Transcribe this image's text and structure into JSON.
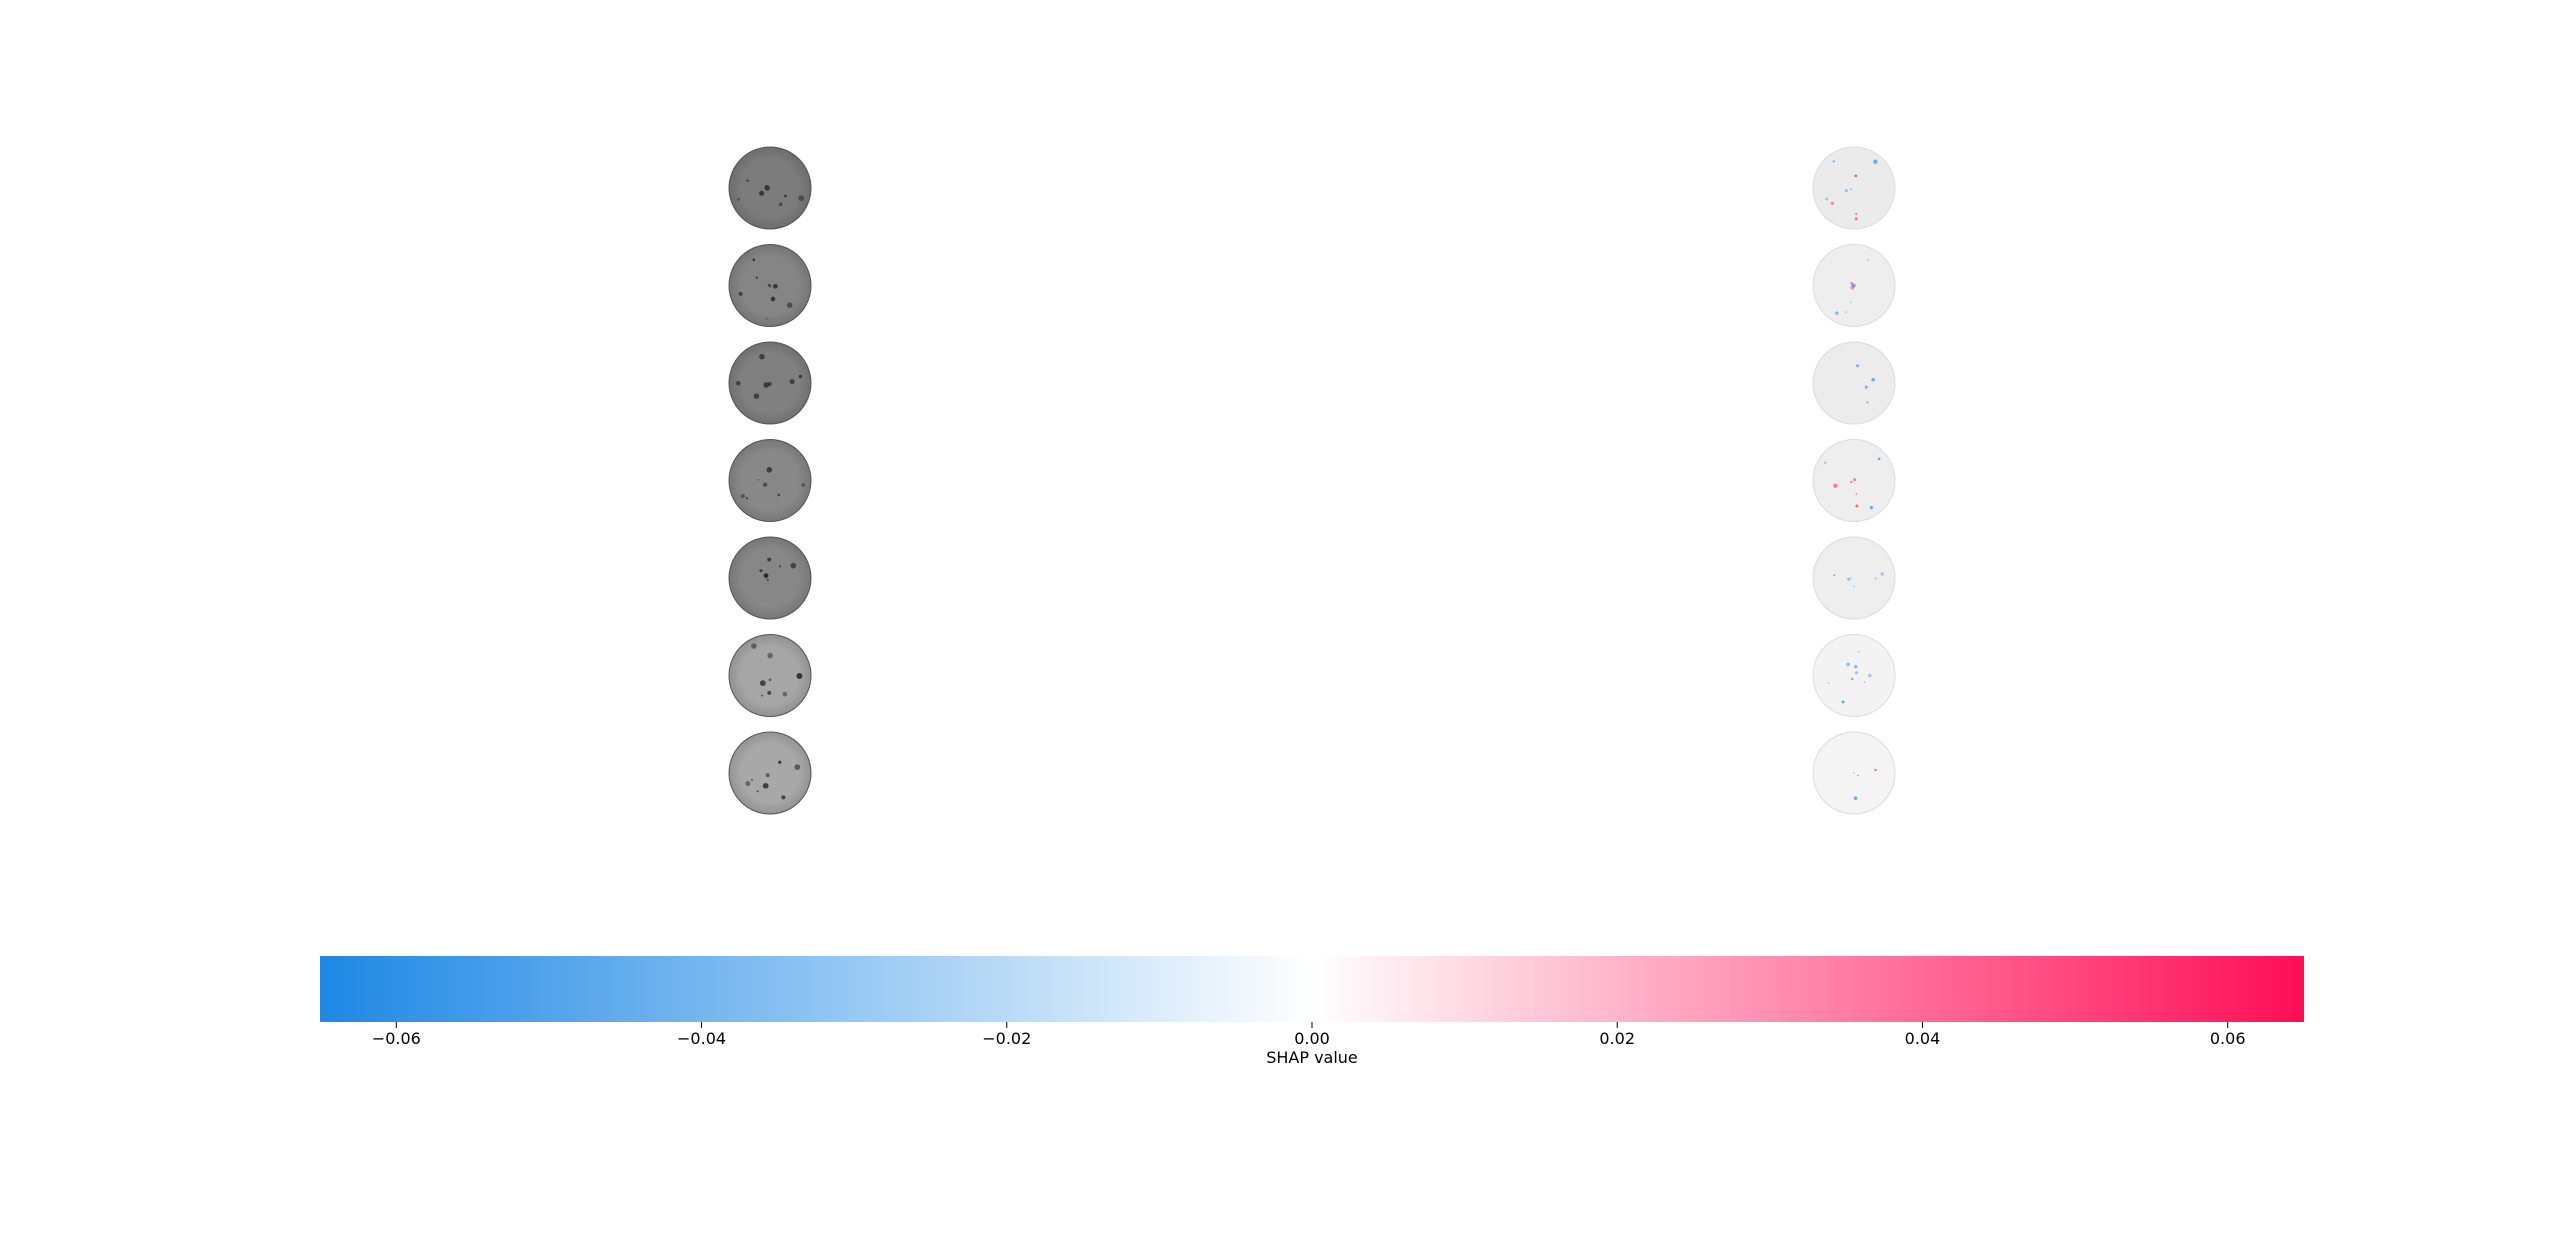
{
  "chart_data": {
    "type": "heatmap",
    "description_kind": "shap-image-plot",
    "rows": 7,
    "columns": [
      "input-image",
      "shap-overlay"
    ],
    "images": [
      {
        "input_gray": "#7c7c7c",
        "overlay_gray": "#ebebeb"
      },
      {
        "input_gray": "#858585",
        "overlay_gray": "#eeeeee"
      },
      {
        "input_gray": "#808080",
        "overlay_gray": "#ececec"
      },
      {
        "input_gray": "#888888",
        "overlay_gray": "#eeeeee"
      },
      {
        "input_gray": "#878787",
        "overlay_gray": "#eeeeee"
      },
      {
        "input_gray": "#a6a6a6",
        "overlay_gray": "#f3f3f3"
      },
      {
        "input_gray": "#a8a8a8",
        "overlay_gray": "#f4f4f4"
      }
    ],
    "colorbar": {
      "label": "SHAP value",
      "min": -0.065,
      "max": 0.065,
      "ticks": [
        -0.06,
        -0.04,
        -0.02,
        0.0,
        0.02,
        0.04,
        0.06
      ],
      "tick_labels": [
        "−0.06",
        "−0.04",
        "−0.02",
        "0.00",
        "0.02",
        "0.04",
        "0.06"
      ],
      "color_negative": "#1e88e5",
      "color_zero": "#ffffff",
      "color_positive": "#ff0d57"
    }
  }
}
